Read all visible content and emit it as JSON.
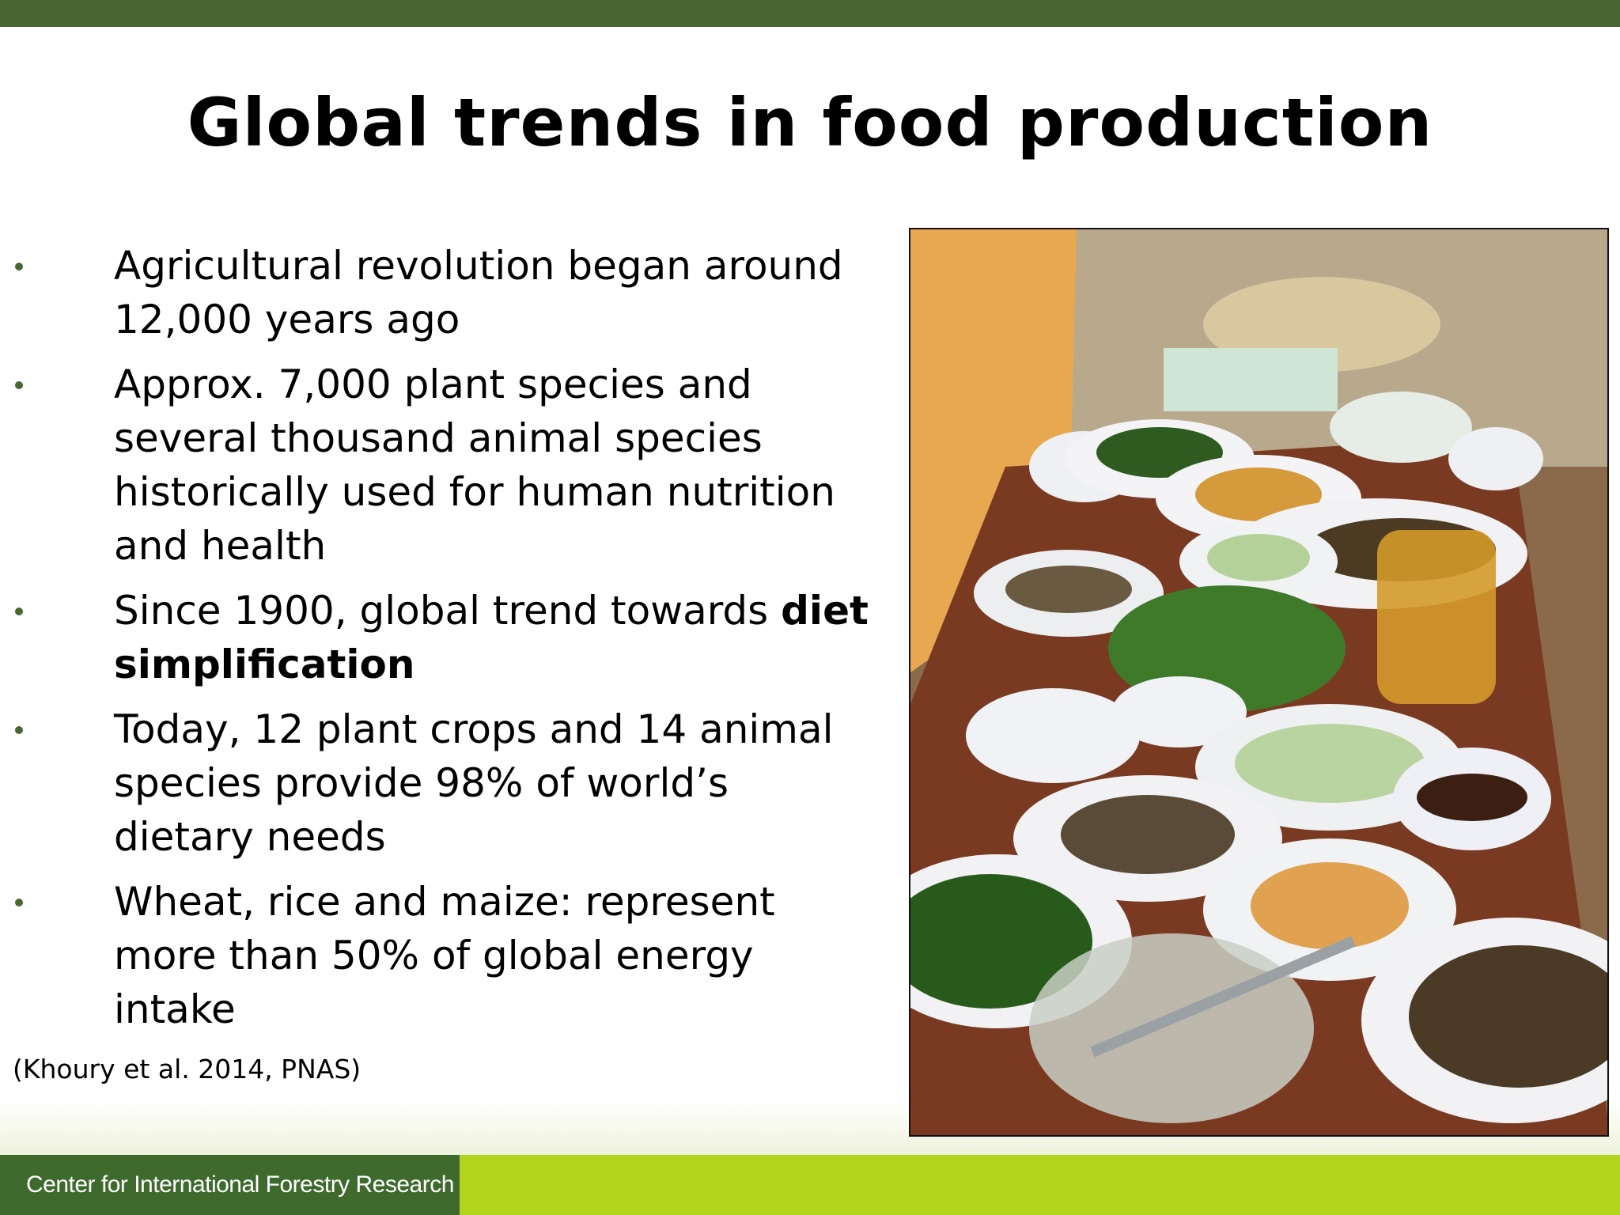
{
  "header": {
    "title": "Global trends in food production"
  },
  "bullets": [
    {
      "text": "Agricultural revolution began around 12,000 years ago"
    },
    {
      "text": "Approx. 7,000 plant species and several thousand animal species historically used for human nutrition and health"
    },
    {
      "text": "Since 1900, global trend towards",
      "bold": "diet simplification"
    },
    {
      "text": "Today, 12 plant crops and 14 animal species provide 98% of world’s dietary needs"
    },
    {
      "text": "Wheat, rice and maize: represent more than 50% of global energy intake"
    }
  ],
  "citation": "(Khoury et al. 2014, PNAS)",
  "footer": {
    "organization": "Center for International Forestry Research"
  }
}
